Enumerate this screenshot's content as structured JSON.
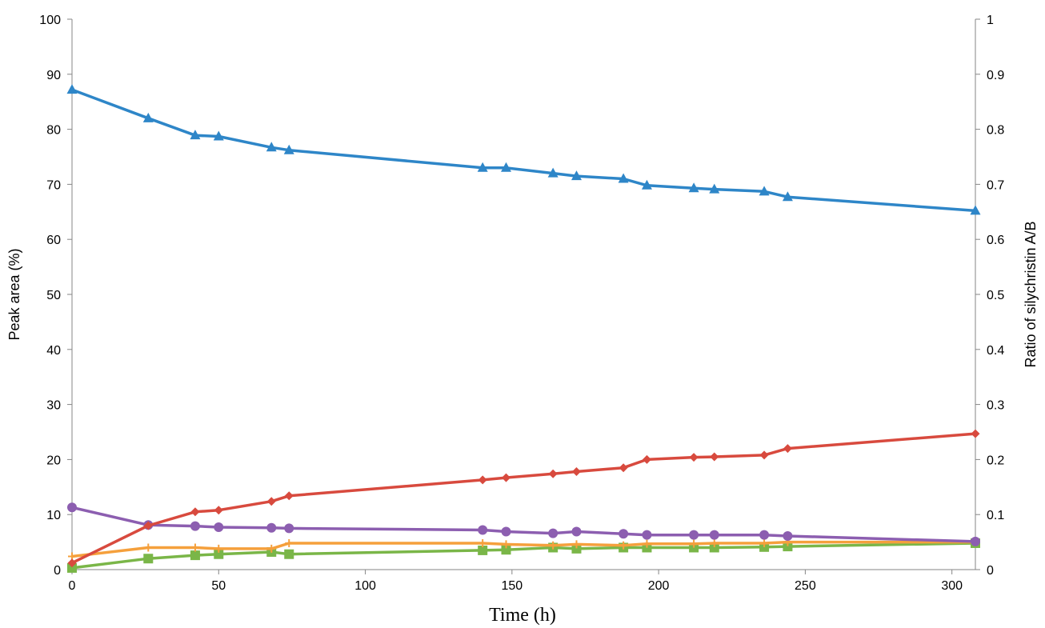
{
  "chart_data": {
    "type": "line",
    "xlabel": "Time (h)",
    "ylabel": "Peak area (%)",
    "y2label": "Ratio of silychristin A/B",
    "xlim": [
      0,
      308
    ],
    "ylim": [
      0,
      100
    ],
    "y2lim": [
      0,
      1
    ],
    "xticks": [
      "0",
      "50",
      "100",
      "150",
      "200",
      "250",
      "300"
    ],
    "yticks": [
      "0",
      "10",
      "20",
      "30",
      "40",
      "50",
      "60",
      "70",
      "80",
      "90",
      "100"
    ],
    "y2ticks": [
      "0",
      "0.1",
      "0.2",
      "0.3",
      "0.4",
      "0.5",
      "0.6",
      "0.7",
      "0.8",
      "0.9",
      "1"
    ],
    "grid": false,
    "legend": "none",
    "series": [
      {
        "marker": "triangle",
        "color": "#2e86c8",
        "x": [
          0,
          26,
          42,
          50,
          68,
          74,
          140,
          148,
          164,
          172,
          188,
          196,
          212,
          219,
          236,
          244,
          308
        ],
        "y": [
          87.2,
          82,
          78.9,
          78.7,
          76.7,
          76.2,
          73,
          73,
          72,
          71.5,
          71,
          69.8,
          69.3,
          69.1,
          68.7,
          67.7,
          65.2
        ]
      },
      {
        "marker": "diamond",
        "color": "#d84a3e",
        "x": [
          0,
          26,
          42,
          50,
          68,
          74,
          140,
          148,
          164,
          172,
          188,
          196,
          212,
          219,
          236,
          244,
          308
        ],
        "y": [
          1.2,
          8,
          10.5,
          10.8,
          12.4,
          13.4,
          16.3,
          16.7,
          17.4,
          17.8,
          18.5,
          20,
          20.4,
          20.5,
          20.8,
          22,
          24.7
        ]
      },
      {
        "marker": "circle",
        "color": "#8c5eb0",
        "x": [
          0,
          26,
          42,
          50,
          68,
          74,
          140,
          148,
          164,
          172,
          188,
          196,
          212,
          219,
          236,
          244,
          308
        ],
        "y": [
          11.3,
          8.1,
          7.9,
          7.7,
          7.6,
          7.5,
          7.2,
          6.9,
          6.6,
          6.9,
          6.5,
          6.3,
          6.3,
          6.3,
          6.3,
          6.1,
          5.1
        ]
      },
      {
        "marker": "plus",
        "color": "#f5a03c",
        "x": [
          0,
          26,
          42,
          50,
          68,
          74,
          140,
          148,
          164,
          172,
          188,
          196,
          212,
          219,
          236,
          244,
          308
        ],
        "y": [
          2.4,
          4,
          4,
          3.8,
          3.8,
          4.8,
          4.8,
          4.6,
          4.4,
          4.6,
          4.4,
          4.7,
          4.7,
          4.8,
          4.8,
          5,
          5
        ]
      },
      {
        "marker": "square",
        "color": "#7ab648",
        "x": [
          0,
          26,
          42,
          50,
          68,
          74,
          140,
          148,
          164,
          172,
          188,
          196,
          212,
          219,
          236,
          244,
          308
        ],
        "y": [
          0.3,
          2,
          2.6,
          2.8,
          3.2,
          2.8,
          3.5,
          3.6,
          4,
          3.8,
          4,
          4,
          4,
          4,
          4.1,
          4.2,
          4.8
        ]
      }
    ]
  }
}
